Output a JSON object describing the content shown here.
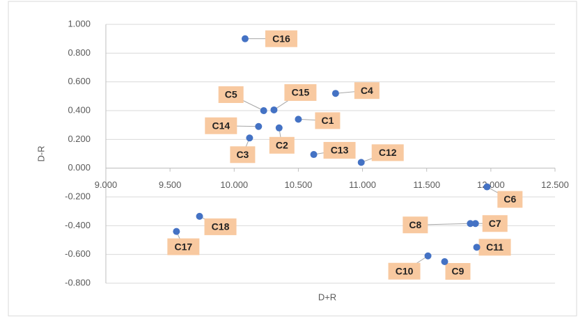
{
  "chart_data": {
    "type": "scatter",
    "x_label": "D+R",
    "y_label": "D-R",
    "point_labels": [
      "C16",
      "C4",
      "C15",
      "C5",
      "C1",
      "C14",
      "C2",
      "C3",
      "C13",
      "C12",
      "C6",
      "C7",
      "C8",
      "C11",
      "C10",
      "C9",
      "C18",
      "C17"
    ],
    "x": [
      10.085,
      10.79,
      10.31,
      10.23,
      10.5,
      10.19,
      10.35,
      10.12,
      10.62,
      10.99,
      11.97,
      11.88,
      11.84,
      11.89,
      11.51,
      11.64,
      9.73,
      9.55
    ],
    "values": [
      0.9,
      0.52,
      0.405,
      0.4,
      0.34,
      0.29,
      0.28,
      0.21,
      0.095,
      0.04,
      -0.13,
      -0.385,
      -0.385,
      -0.55,
      -0.61,
      -0.65,
      -0.335,
      -0.44
    ],
    "color": "#4472c4",
    "label_color": "#f8c9a0",
    "xlim": [
      9,
      12.5
    ],
    "xticks": [
      {
        "value": 9,
        "label": "9.000"
      },
      {
        "value": 9.5,
        "label": "9.500"
      },
      {
        "value": 10,
        "label": "10.000"
      },
      {
        "value": 10.5,
        "label": "10.500"
      },
      {
        "value": 11,
        "label": "11.000"
      },
      {
        "value": 11.5,
        "label": "11.500"
      },
      {
        "value": 12,
        "label": "12.000"
      },
      {
        "value": 12.5,
        "label": "12.500"
      }
    ],
    "ylim": [
      -0.8,
      1
    ],
    "yticks": [
      {
        "value": 1,
        "label": "1.000"
      },
      {
        "value": 0.8,
        "label": "0.800"
      },
      {
        "value": 0.6,
        "label": "0.600"
      },
      {
        "value": 0.4,
        "label": "0.400"
      },
      {
        "value": 0.2,
        "label": "0.200"
      },
      {
        "value": 0,
        "label": "0.000"
      },
      {
        "value": -0.2,
        "label": "-0.200"
      },
      {
        "value": -0.4,
        "label": "-0.400"
      },
      {
        "value": -0.6,
        "label": "-0.600"
      },
      {
        "value": -0.8,
        "label": "-0.800"
      }
    ],
    "grid": true
  }
}
